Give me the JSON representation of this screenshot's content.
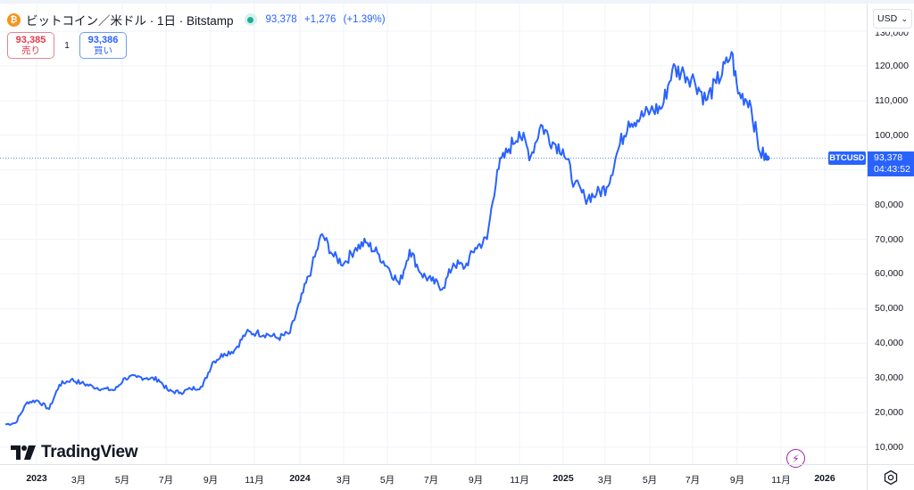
{
  "header": {
    "symbol_icon": "bitcoin-icon",
    "symbol_icon_glyph": "₿",
    "title": "ビットコイン／米ドル · 1日 · Bitstamp",
    "market_status": "open",
    "last_price": "93,378",
    "change": "+1,276",
    "change_pct": "(+1.39%)"
  },
  "trade": {
    "sell_price": "93,385",
    "sell_label": "売り",
    "spread": "1",
    "buy_price": "93,386",
    "buy_label": "買い"
  },
  "price_axis": {
    "currency": "USD",
    "currency_chevron": "⌄",
    "ticks": [
      "130,000",
      "120,000",
      "110,000",
      "100,000",
      "80,000",
      "70,000",
      "60,000",
      "50,000",
      "40,000",
      "30,000",
      "20,000",
      "10,000"
    ],
    "last_price_tag": {
      "price": "93,378",
      "countdown": "04:43:52"
    },
    "symbol_tag": "BTCUSD"
  },
  "time_axis": {
    "ticks": [
      {
        "label": "2023",
        "year": true
      },
      {
        "label": "3月"
      },
      {
        "label": "5月"
      },
      {
        "label": "7月"
      },
      {
        "label": "9月"
      },
      {
        "label": "11月"
      },
      {
        "label": "2024",
        "year": true
      },
      {
        "label": "3月"
      },
      {
        "label": "5月"
      },
      {
        "label": "7月"
      },
      {
        "label": "9月"
      },
      {
        "label": "11月"
      },
      {
        "label": "2025",
        "year": true
      },
      {
        "label": "3月"
      },
      {
        "label": "5月"
      },
      {
        "label": "7月"
      },
      {
        "label": "9月"
      },
      {
        "label": "11月"
      },
      {
        "label": "2026",
        "year": true
      }
    ],
    "settings_icon": "settings-icon"
  },
  "branding": {
    "logo_text": "TradingView"
  },
  "colors": {
    "line": "#2962ff",
    "up": "#22ab94",
    "sell": "#e53949",
    "buy": "#2962ff",
    "grid": "#f0f3fa",
    "price_line": "#2962ff",
    "bolt": "#9c27b0"
  },
  "chart_data": {
    "type": "line",
    "title": "ビットコイン／米ドル · 1日 · Bitstamp",
    "series": [
      {
        "name": "BTCUSD",
        "x": [
          "2023-01",
          "2023-01-15",
          "2023-02",
          "2023-02-15",
          "2023-03",
          "2023-03-15",
          "2023-04",
          "2023-04-15",
          "2023-05",
          "2023-05-15",
          "2023-06",
          "2023-06-15",
          "2023-07",
          "2023-07-15",
          "2023-08",
          "2023-08-15",
          "2023-09",
          "2023-09-15",
          "2023-10",
          "2023-10-15",
          "2023-11",
          "2023-11-15",
          "2023-12",
          "2023-12-15",
          "2024-01",
          "2024-01-15",
          "2024-02",
          "2024-02-15",
          "2024-03",
          "2024-03-15",
          "2024-04",
          "2024-04-15",
          "2024-05",
          "2024-05-15",
          "2024-06",
          "2024-06-15",
          "2024-07",
          "2024-07-15",
          "2024-08",
          "2024-08-15",
          "2024-09",
          "2024-09-15",
          "2024-10",
          "2024-10-15",
          "2024-11",
          "2024-11-15",
          "2024-12",
          "2024-12-15",
          "2025-01",
          "2025-01-15",
          "2025-02",
          "2025-02-15",
          "2025-03",
          "2025-03-15",
          "2025-04",
          "2025-04-15",
          "2025-05",
          "2025-05-15",
          "2025-06",
          "2025-06-15",
          "2025-07",
          "2025-07-15",
          "2025-08",
          "2025-08-15",
          "2025-09",
          "2025-09-15",
          "2025-10",
          "2025-10-06",
          "2025-10-15",
          "2025-11",
          "2025-11-15",
          "2025-11-25"
        ],
        "values": [
          16600,
          17000,
          23000,
          23500,
          21000,
          28000,
          29500,
          28500,
          27500,
          26800,
          26500,
          30000,
          30200,
          30000,
          29500,
          26200,
          25800,
          26800,
          27500,
          34500,
          37000,
          38000,
          43000,
          43000,
          42500,
          41500,
          43000,
          52000,
          62000,
          71500,
          65000,
          63000,
          67500,
          69000,
          66000,
          62000,
          57000,
          67000,
          60000,
          58000,
          56000,
          63000,
          62000,
          67500,
          70000,
          90000,
          96000,
          101000,
          94000,
          103000,
          98000,
          96000,
          86000,
          82000,
          83000,
          85000,
          96000,
          104000,
          105000,
          107000,
          108000,
          119000,
          118000,
          116000,
          110000,
          115000,
          121000,
          124000,
          112000,
          110000,
          95000,
          93378
        ]
      }
    ],
    "xlabel": "",
    "ylabel": "USD",
    "ylim": [
      7000,
      132000
    ],
    "y_ticks": [
      10000,
      20000,
      30000,
      40000,
      50000,
      60000,
      70000,
      80000,
      100000,
      110000,
      120000,
      130000
    ],
    "x_ticks": [
      "2023",
      "3月",
      "5月",
      "7月",
      "9月",
      "11月",
      "2024",
      "3月",
      "5月",
      "7月",
      "9月",
      "11月",
      "2025",
      "3月",
      "5月",
      "7月",
      "9月",
      "11月",
      "2026"
    ],
    "last_value": 93378,
    "grid": true,
    "legend_position": "top-left"
  }
}
